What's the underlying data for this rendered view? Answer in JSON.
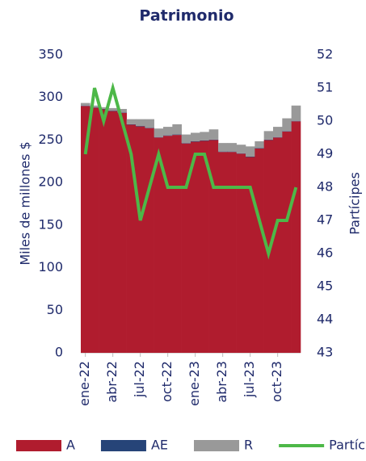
{
  "chart_data": {
    "type": "bar",
    "stacked": true,
    "title": "Patrimonio",
    "y_label": "Miles de millones $",
    "y2_label": "Partícipes",
    "categories": [
      "ene-22",
      null,
      null,
      "abr-22",
      null,
      null,
      "jul-22",
      null,
      null,
      "oct-22",
      null,
      null,
      "ene-23",
      null,
      null,
      "abr-23",
      null,
      null,
      "jul-23",
      null,
      null,
      "oct-23",
      null,
      null
    ],
    "series": [
      {
        "name": "A",
        "color": "#b01c2e",
        "values": [
          290,
          288,
          286,
          284,
          282,
          268,
          266,
          264,
          253,
          255,
          256,
          246,
          248,
          249,
          250,
          236,
          236,
          234,
          230,
          240,
          250,
          253,
          260,
          272
        ]
      },
      {
        "name": "AE",
        "color": "#264478",
        "values": [
          0.5,
          0.5,
          0.5,
          0.5,
          0.5,
          0.5,
          0.5,
          0.5,
          0.5,
          0.5,
          0.5,
          0.5,
          0.5,
          0.5,
          0.5,
          0.5,
          0.5,
          0.5,
          0.5,
          0.5,
          0.5,
          0.5,
          0.5,
          0.5
        ]
      },
      {
        "name": "R",
        "color": "#999999",
        "values": [
          3,
          2,
          2,
          3,
          4,
          6,
          8,
          10,
          10,
          10,
          12,
          10,
          10,
          10,
          12,
          10,
          10,
          10,
          12,
          8,
          10,
          12,
          15,
          18
        ]
      },
      {
        "name": "Partícipes",
        "color": "#4db848",
        "type": "line",
        "axis": "y2",
        "values": [
          49,
          51,
          50,
          51,
          50,
          49,
          47,
          48,
          49,
          48,
          48,
          48,
          49,
          49,
          48,
          48,
          48,
          48,
          48,
          47,
          46,
          47,
          47,
          48
        ]
      }
    ],
    "ylim": [
      0,
      350
    ],
    "yticks": [
      0,
      50,
      100,
      150,
      200,
      250,
      300,
      350
    ],
    "y2lim": [
      43,
      52
    ],
    "y2ticks": [
      43,
      44,
      45,
      46,
      47,
      48,
      49,
      50,
      51,
      52
    ],
    "grid": false,
    "legend": "bottom"
  }
}
